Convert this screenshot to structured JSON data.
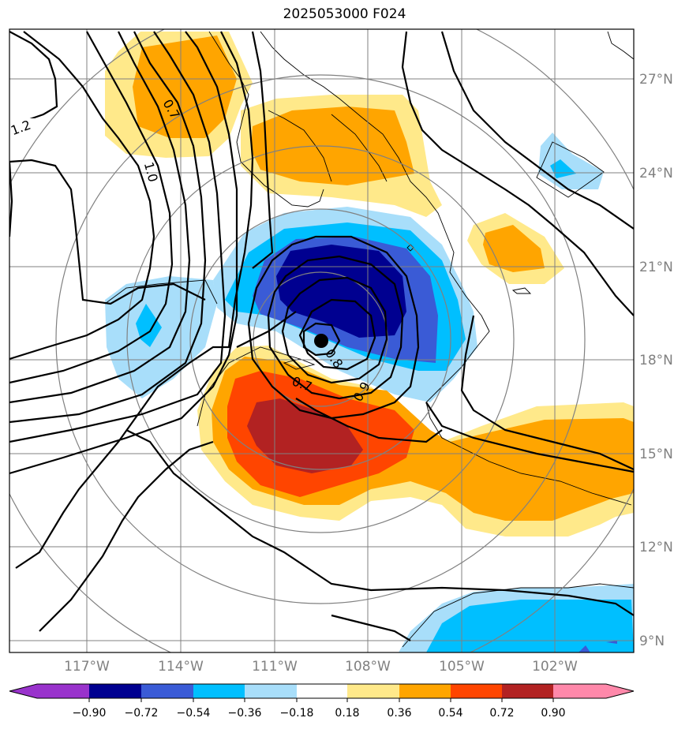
{
  "title": "2025053000 F024",
  "lat_labels": [
    "27°N",
    "24°N",
    "21°N",
    "18°N",
    "15°N",
    "12°N",
    "9°N"
  ],
  "lon_labels": [
    "117°W",
    "114°W",
    "111°W",
    "108°W",
    "105°W",
    "102°W"
  ],
  "contour_labels": [
    "1.2",
    "1.0",
    "0.7",
    "0.7",
    "0.8",
    "0.9"
  ],
  "colorbar": {
    "ticks": [
      "−0.90",
      "−0.72",
      "−0.54",
      "−0.36",
      "−0.18",
      "0.18",
      "0.36",
      "0.54",
      "0.72",
      "0.90"
    ],
    "colors": [
      "#9933cc",
      "#000090",
      "#3a5bd6",
      "#00bfff",
      "#a8defa",
      "#ffffff",
      "#ffe98a",
      "#ffa500",
      "#ff4500",
      "#b22222",
      "#ff88aa"
    ]
  },
  "map_colors": {
    "orange": "#ffa500",
    "light_yellow": "#ffe98a",
    "dark_blue": "#000090",
    "mid_blue": "#3a5bd6",
    "sky_blue": "#00bfff",
    "pale_blue": "#a8defa",
    "red_orange": "#ff4500",
    "firebrick": "#b22222"
  }
}
